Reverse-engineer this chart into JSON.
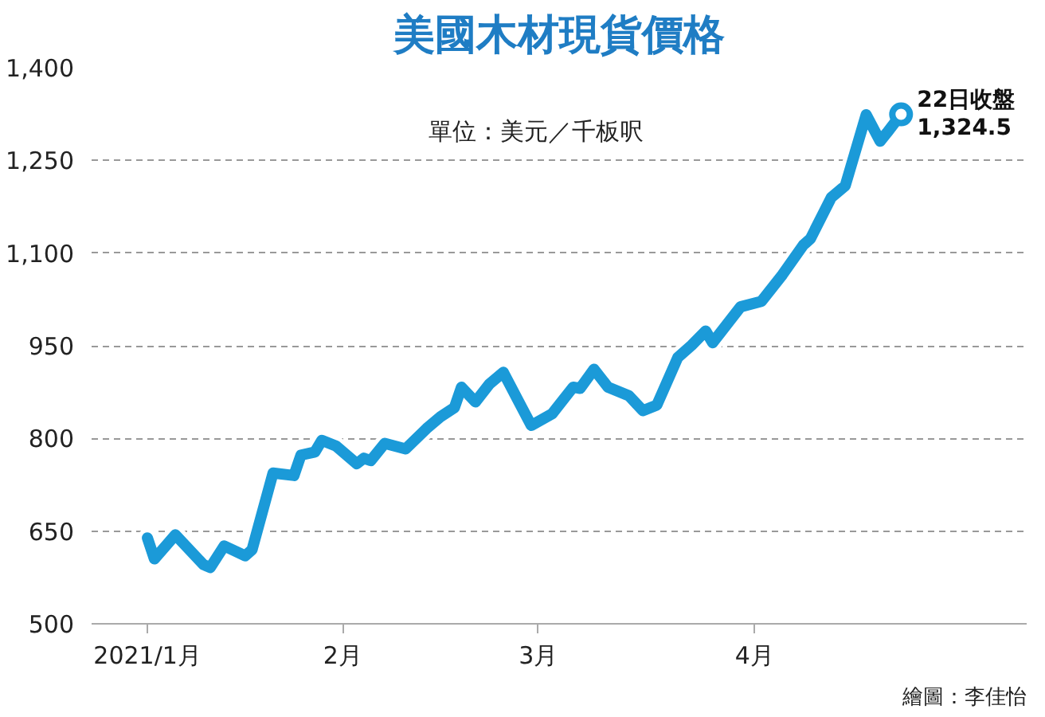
{
  "chart_data": {
    "type": "line",
    "title": "美國木材現貨價格",
    "x": [
      "2021-01-04",
      "2021-01-05",
      "2021-01-08",
      "2021-01-12",
      "2021-01-13",
      "2021-01-15",
      "2021-01-18",
      "2021-01-19",
      "2021-01-22",
      "2021-01-25",
      "2021-01-26",
      "2021-01-28",
      "2021-01-29",
      "2021-01-31",
      "2021-02-03",
      "2021-02-04",
      "2021-02-05",
      "2021-02-07",
      "2021-02-10",
      "2021-02-13",
      "2021-02-15",
      "2021-02-17",
      "2021-02-18",
      "2021-02-20",
      "2021-02-22",
      "2021-02-24",
      "2021-02-28",
      "2021-03-03",
      "2021-03-06",
      "2021-03-07",
      "2021-03-09",
      "2021-03-11",
      "2021-03-14",
      "2021-03-16",
      "2021-03-18",
      "2021-03-21",
      "2021-03-23",
      "2021-03-25",
      "2021-03-26",
      "2021-03-30",
      "2021-04-02",
      "2021-04-05",
      "2021-04-08",
      "2021-04-09",
      "2021-04-12",
      "2021-04-14",
      "2021-04-17",
      "2021-04-19",
      "2021-04-20",
      "2021-04-22"
    ],
    "series": [
      {
        "color": "#1b9ad8",
        "values": [
          639,
          605,
          644,
          596,
          591,
          626,
          610,
          620,
          744,
          740,
          773,
          778,
          797,
          788,
          759,
          768,
          764,
          792,
          783,
          816,
          835,
          850,
          883,
          859,
          888,
          907,
          821,
          840,
          883,
          881,
          912,
          883,
          869,
          845,
          854,
          931,
          951,
          974,
          955,
          1013,
          1022,
          1065,
          1113,
          1123,
          1190,
          1209,
          1324,
          1281,
          1295,
          1324.5
        ]
      }
    ],
    "xlim": [
      "2020-12-27",
      "2021-05-10"
    ],
    "xticks": [
      {
        "value": "2021-01-04",
        "label": "2021/1月"
      },
      {
        "value": "2021-02-01",
        "label": "2月"
      },
      {
        "value": "2021-03-01",
        "label": "3月"
      },
      {
        "value": "2021-04-01",
        "label": "4月"
      }
    ],
    "ylim": [
      500,
      1400
    ],
    "yticks": [
      500,
      650,
      800,
      950,
      {
        "value": 1100,
        "label": "1,100"
      },
      {
        "value": 1250,
        "label": "1,250"
      },
      {
        "value": 1400,
        "label": "1,400"
      }
    ],
    "grid": "y",
    "marker": "none",
    "line_style": "solid",
    "annotations": [
      {
        "text": "22日收盤\n1,324.5",
        "x": "2021-04-22",
        "y": 1324.5
      },
      "單位：美元／千板呎",
      "繪圖：李佳怡"
    ]
  }
}
